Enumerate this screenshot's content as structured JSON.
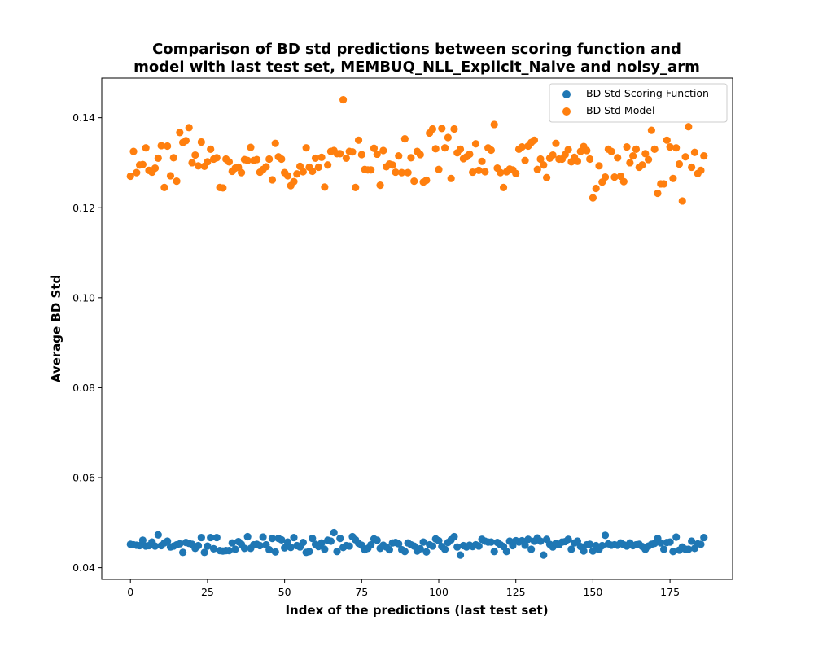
{
  "chart_data": {
    "type": "scatter",
    "title": [
      "Comparison of BD std predictions between scoring function and",
      "model with last test set, MEMBUQ_NLL_Explicit_Naive and noisy_arm"
    ],
    "xlabel": "Index of the predictions (last test set)",
    "ylabel": "Average BD Std",
    "xlim": [
      -9.3,
      195.3
    ],
    "ylim": [
      0.0374,
      0.1488
    ],
    "xticks": [
      0,
      25,
      50,
      75,
      100,
      125,
      150,
      175
    ],
    "xtick_labels": [
      "0",
      "25",
      "50",
      "75",
      "100",
      "125",
      "150",
      "175"
    ],
    "yticks": [
      0.04,
      0.06,
      0.08,
      0.1,
      0.12,
      0.14
    ],
    "ytick_labels": [
      "0.04",
      "0.06",
      "0.08",
      "0.10",
      "0.12",
      "0.14"
    ],
    "grid": false,
    "legend_position": "top-right",
    "series": [
      {
        "name": "BD Std Scoring Function",
        "color": "#1f77b4",
        "x": [
          0,
          1,
          2,
          3,
          4,
          5,
          6,
          7,
          8,
          9,
          10,
          11,
          12,
          13,
          14,
          15,
          16,
          17,
          18,
          19,
          20,
          21,
          22,
          23,
          24,
          25,
          26,
          27,
          28,
          29,
          30,
          31,
          32,
          33,
          34,
          35,
          36,
          37,
          38,
          39,
          40,
          41,
          42,
          43,
          44,
          45,
          46,
          47,
          48,
          49,
          50,
          51,
          52,
          53,
          54,
          55,
          56,
          57,
          58,
          59,
          60,
          61,
          62,
          63,
          64,
          65,
          66,
          67,
          68,
          69,
          70,
          71,
          72,
          73,
          74,
          75,
          76,
          77,
          78,
          79,
          80,
          81,
          82,
          83,
          84,
          85,
          86,
          87,
          88,
          89,
          90,
          91,
          92,
          93,
          94,
          95,
          96,
          97,
          98,
          99,
          100,
          101,
          102,
          103,
          104,
          105,
          106,
          107,
          108,
          109,
          110,
          111,
          112,
          113,
          114,
          115,
          116,
          117,
          118,
          119,
          120,
          121,
          122,
          123,
          124,
          125,
          126,
          127,
          128,
          129,
          130,
          131,
          132,
          133,
          134,
          135,
          136,
          137,
          138,
          139,
          140,
          141,
          142,
          143,
          144,
          145,
          146,
          147,
          148,
          149,
          150,
          151,
          152,
          153,
          154,
          155,
          156,
          157,
          158,
          159,
          160,
          161,
          162,
          163,
          164,
          165,
          166,
          167,
          168,
          169,
          170,
          171,
          172,
          173,
          174,
          175,
          176,
          177,
          178,
          179,
          180,
          181,
          182,
          183,
          184,
          185,
          186
        ],
        "y": [
          0.0452,
          0.0451,
          0.045,
          0.0449,
          0.0461,
          0.0448,
          0.0449,
          0.0457,
          0.0448,
          0.0473,
          0.0449,
          0.0455,
          0.0459,
          0.0446,
          0.0448,
          0.0451,
          0.0453,
          0.0434,
          0.0456,
          0.0454,
          0.0452,
          0.0443,
          0.0449,
          0.0467,
          0.0434,
          0.0448,
          0.0467,
          0.0442,
          0.0467,
          0.0438,
          0.0437,
          0.0438,
          0.0438,
          0.0455,
          0.0441,
          0.0458,
          0.0452,
          0.0443,
          0.0469,
          0.0443,
          0.0451,
          0.0452,
          0.0449,
          0.0468,
          0.0451,
          0.044,
          0.0465,
          0.0435,
          0.0465,
          0.0462,
          0.0444,
          0.0457,
          0.0445,
          0.0467,
          0.0449,
          0.0446,
          0.0456,
          0.0434,
          0.0436,
          0.0465,
          0.0452,
          0.0447,
          0.0455,
          0.0441,
          0.0461,
          0.0459,
          0.0478,
          0.0436,
          0.0465,
          0.0445,
          0.0449,
          0.0448,
          0.0469,
          0.0462,
          0.0454,
          0.045,
          0.044,
          0.0443,
          0.0451,
          0.0464,
          0.0461,
          0.0443,
          0.045,
          0.0446,
          0.044,
          0.0455,
          0.0456,
          0.0453,
          0.044,
          0.0436,
          0.0455,
          0.0451,
          0.0448,
          0.0437,
          0.0442,
          0.0457,
          0.0435,
          0.0451,
          0.0448,
          0.0464,
          0.046,
          0.0447,
          0.0441,
          0.0456,
          0.0462,
          0.0469,
          0.0446,
          0.0428,
          0.0449,
          0.0446,
          0.045,
          0.0447,
          0.0451,
          0.0448,
          0.0463,
          0.0459,
          0.0457,
          0.0457,
          0.0436,
          0.0456,
          0.0451,
          0.0447,
          0.0436,
          0.0459,
          0.0449,
          0.046,
          0.0457,
          0.046,
          0.045,
          0.0463,
          0.0441,
          0.0459,
          0.0466,
          0.0459,
          0.0428,
          0.0463,
          0.0452,
          0.0446,
          0.0454,
          0.0451,
          0.0457,
          0.0458,
          0.0463,
          0.0441,
          0.0455,
          0.0459,
          0.0447,
          0.0437,
          0.0451,
          0.0452,
          0.0437,
          0.0449,
          0.0441,
          0.0449,
          0.0472,
          0.0453,
          0.045,
          0.0451,
          0.045,
          0.0455,
          0.0451,
          0.0448,
          0.0455,
          0.0449,
          0.0451,
          0.0452,
          0.0447,
          0.0441,
          0.0448,
          0.0452,
          0.0454,
          0.0465,
          0.0455,
          0.0441,
          0.0456,
          0.0457,
          0.0436,
          0.0468,
          0.0439,
          0.0446,
          0.0441,
          0.0441,
          0.0459,
          0.0443,
          0.0453,
          0.0452,
          0.0467
        ]
      },
      {
        "name": "BD Std Model",
        "color": "#ff7f0e",
        "x": [
          0,
          1,
          2,
          3,
          4,
          5,
          6,
          7,
          8,
          9,
          10,
          11,
          12,
          13,
          14,
          15,
          16,
          17,
          18,
          19,
          20,
          21,
          22,
          23,
          24,
          25,
          26,
          27,
          28,
          29,
          30,
          31,
          32,
          33,
          34,
          35,
          36,
          37,
          38,
          39,
          40,
          41,
          42,
          43,
          44,
          45,
          46,
          47,
          48,
          49,
          50,
          51,
          52,
          53,
          54,
          55,
          56,
          57,
          58,
          59,
          60,
          61,
          62,
          63,
          64,
          65,
          66,
          67,
          68,
          69,
          70,
          71,
          72,
          73,
          74,
          75,
          76,
          77,
          78,
          79,
          80,
          81,
          82,
          83,
          84,
          85,
          86,
          87,
          88,
          89,
          90,
          91,
          92,
          93,
          94,
          95,
          96,
          97,
          98,
          99,
          100,
          101,
          102,
          103,
          104,
          105,
          106,
          107,
          108,
          109,
          110,
          111,
          112,
          113,
          114,
          115,
          116,
          117,
          118,
          119,
          120,
          121,
          122,
          123,
          124,
          125,
          126,
          127,
          128,
          129,
          130,
          131,
          132,
          133,
          134,
          135,
          136,
          137,
          138,
          139,
          140,
          141,
          142,
          143,
          144,
          145,
          146,
          147,
          148,
          149,
          150,
          151,
          152,
          153,
          154,
          155,
          156,
          157,
          158,
          159,
          160,
          161,
          162,
          163,
          164,
          165,
          166,
          167,
          168,
          169,
          170,
          171,
          172,
          173,
          174,
          175,
          176,
          177,
          178,
          179,
          180,
          181,
          182,
          183,
          184,
          185,
          186
        ],
        "y": [
          0.127,
          0.1325,
          0.1278,
          0.1295,
          0.1296,
          0.1333,
          0.1283,
          0.1279,
          0.1288,
          0.131,
          0.1338,
          0.1245,
          0.1337,
          0.1271,
          0.1311,
          0.1259,
          0.1367,
          0.1345,
          0.1349,
          0.1378,
          0.13,
          0.1317,
          0.1293,
          0.1346,
          0.1292,
          0.1302,
          0.133,
          0.1308,
          0.1311,
          0.1245,
          0.1244,
          0.1308,
          0.1302,
          0.1281,
          0.1288,
          0.129,
          0.1278,
          0.1307,
          0.1305,
          0.1334,
          0.1305,
          0.1307,
          0.1279,
          0.1285,
          0.1291,
          0.1308,
          0.1262,
          0.1343,
          0.1313,
          0.1308,
          0.1278,
          0.1271,
          0.1249,
          0.1258,
          0.1275,
          0.1292,
          0.128,
          0.1333,
          0.129,
          0.1281,
          0.131,
          0.129,
          0.1312,
          0.1246,
          0.1295,
          0.1325,
          0.1327,
          0.132,
          0.132,
          0.144,
          0.131,
          0.1325,
          0.1324,
          0.1245,
          0.135,
          0.1318,
          0.1285,
          0.1284,
          0.1284,
          0.1332,
          0.1319,
          0.125,
          0.1327,
          0.1291,
          0.1297,
          0.1295,
          0.1279,
          0.1315,
          0.1278,
          0.1353,
          0.1278,
          0.1311,
          0.1259,
          0.1325,
          0.1318,
          0.1257,
          0.1261,
          0.1366,
          0.1375,
          0.1331,
          0.1285,
          0.1376,
          0.1333,
          0.1356,
          0.1265,
          0.1375,
          0.1322,
          0.133,
          0.1309,
          0.1313,
          0.1319,
          0.1279,
          0.1342,
          0.1283,
          0.1303,
          0.128,
          0.1333,
          0.1328,
          0.1385,
          0.1288,
          0.1278,
          0.1245,
          0.128,
          0.1286,
          0.1284,
          0.1276,
          0.133,
          0.1335,
          0.1305,
          0.1337,
          0.1345,
          0.135,
          0.1285,
          0.1308,
          0.1295,
          0.1267,
          0.131,
          0.1317,
          0.1343,
          0.1308,
          0.1308,
          0.1318,
          0.1329,
          0.1302,
          0.1312,
          0.1303,
          0.1325,
          0.1336,
          0.1327,
          0.1308,
          0.1222,
          0.1243,
          0.1293,
          0.1257,
          0.1268,
          0.133,
          0.1325,
          0.1268,
          0.1311,
          0.127,
          0.1258,
          0.1335,
          0.13,
          0.1315,
          0.133,
          0.129,
          0.1295,
          0.132,
          0.1307,
          0.1372,
          0.133,
          0.1232,
          0.1253,
          0.1253,
          0.135,
          0.1335,
          0.1265,
          0.1333,
          0.1297,
          0.1215,
          0.1313,
          0.138,
          0.129,
          0.1323,
          0.1276,
          0.1283,
          0.1315
        ]
      }
    ]
  }
}
